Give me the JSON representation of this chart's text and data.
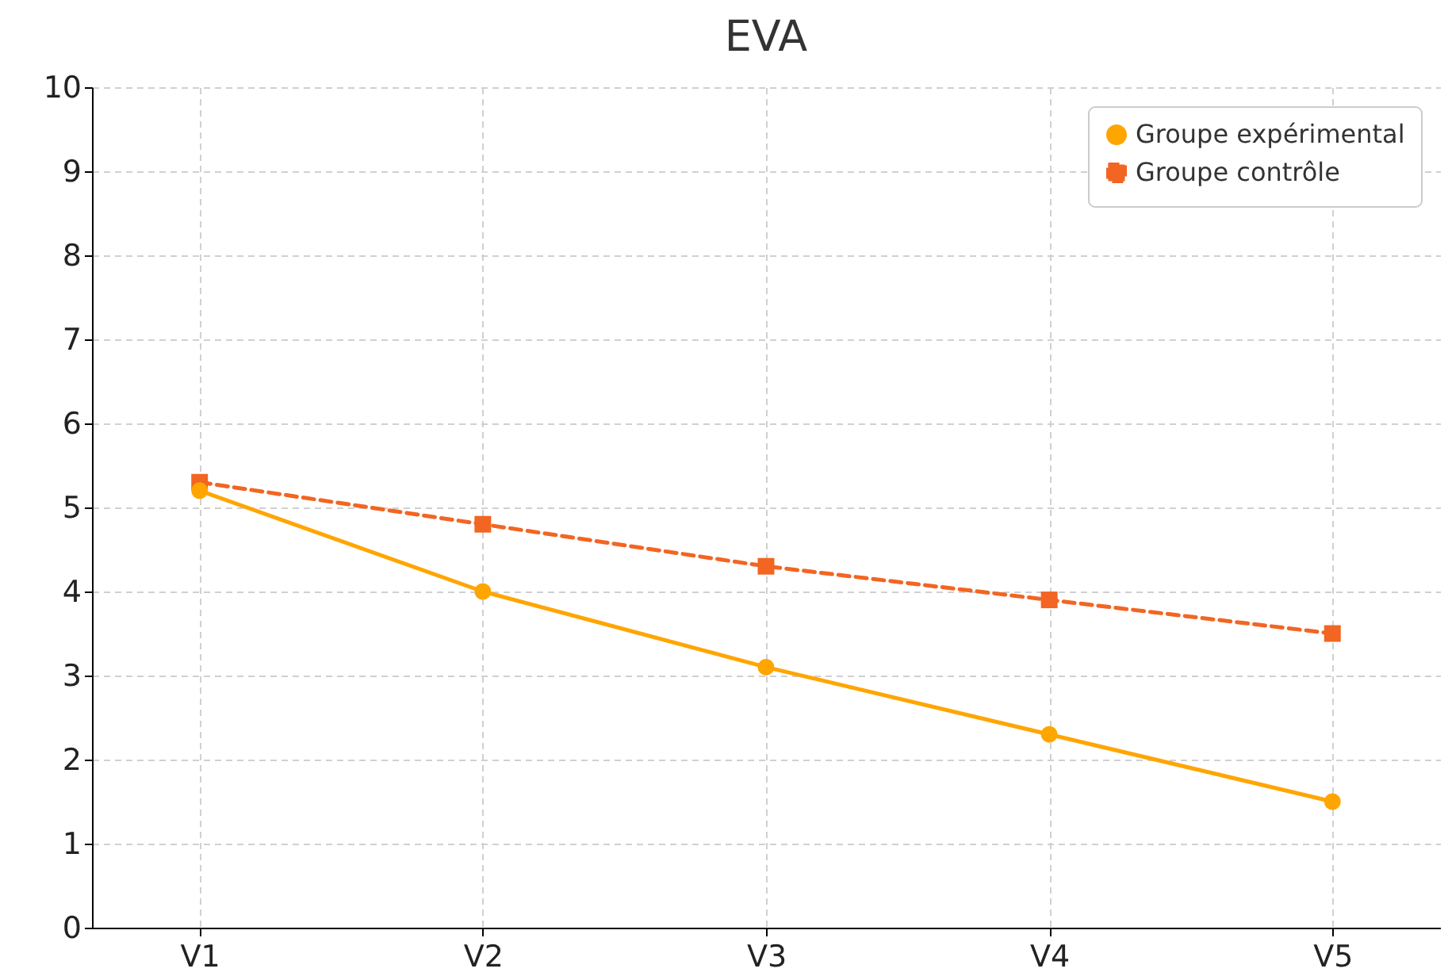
{
  "chart_data": {
    "type": "line",
    "title": "EVA",
    "categories": [
      "V1",
      "V2",
      "V3",
      "V4",
      "V5"
    ],
    "series": [
      {
        "name": "Groupe expérimental",
        "color": "#ffa500",
        "values": [
          5.2,
          4.0,
          3.1,
          2.3,
          1.5
        ],
        "marker": "circle",
        "line_style": "solid"
      },
      {
        "name": "Groupe contrôle",
        "color": "#f26522",
        "values": [
          5.3,
          4.8,
          4.3,
          3.9,
          3.5
        ],
        "marker": "square",
        "line_style": "dashed"
      }
    ],
    "ylim": [
      0,
      10
    ],
    "yticks": [
      0,
      1,
      2,
      3,
      4,
      5,
      6,
      7,
      8,
      9,
      10
    ],
    "grid": true,
    "legend": "top right"
  }
}
